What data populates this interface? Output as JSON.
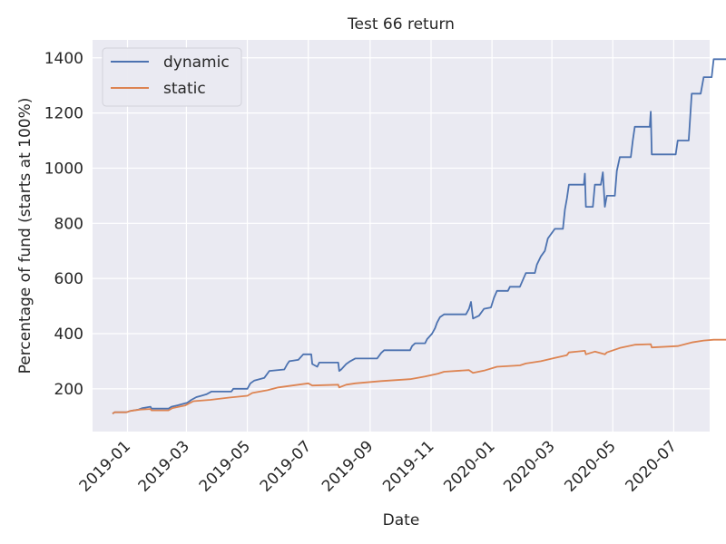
{
  "chart_data": {
    "type": "line",
    "title": "Test 66 return",
    "xlabel": "Date",
    "ylabel": "Percentage of fund (starts at 100%)",
    "xlim": [
      "2018-11-27",
      "2020-08-06"
    ],
    "ylim": [
      45,
      1465
    ],
    "x_ticks": [
      "2019-01",
      "2019-03",
      "2019-05",
      "2019-07",
      "2019-09",
      "2019-11",
      "2020-01",
      "2020-03",
      "2020-05",
      "2020-07"
    ],
    "y_ticks": [
      200,
      400,
      600,
      800,
      1000,
      1200,
      1400
    ],
    "grid": true,
    "legend": "top-left",
    "series": [
      {
        "name": "dynamic",
        "color": "#4c72b0",
        "points": [
          [
            "2018-12-17",
            110
          ],
          [
            "2018-12-19",
            115
          ],
          [
            "2018-12-31",
            115
          ],
          [
            "2019-01-04",
            120
          ],
          [
            "2019-01-12",
            125
          ],
          [
            "2019-01-16",
            130
          ],
          [
            "2019-01-24",
            135
          ],
          [
            "2019-01-25",
            128
          ],
          [
            "2019-02-11",
            128
          ],
          [
            "2019-02-14",
            135
          ],
          [
            "2019-02-20",
            140
          ],
          [
            "2019-02-25",
            145
          ],
          [
            "2019-03-02",
            150
          ],
          [
            "2019-03-06",
            160
          ],
          [
            "2019-03-11",
            170
          ],
          [
            "2019-03-16",
            175
          ],
          [
            "2019-03-21",
            180
          ],
          [
            "2019-03-26",
            190
          ],
          [
            "2019-04-15",
            190
          ],
          [
            "2019-04-17",
            200
          ],
          [
            "2019-05-01",
            200
          ],
          [
            "2019-05-04",
            220
          ],
          [
            "2019-05-08",
            230
          ],
          [
            "2019-05-13",
            235
          ],
          [
            "2019-05-18",
            240
          ],
          [
            "2019-05-23",
            265
          ],
          [
            "2019-06-07",
            270
          ],
          [
            "2019-06-10",
            290
          ],
          [
            "2019-06-12",
            300
          ],
          [
            "2019-06-21",
            305
          ],
          [
            "2019-06-26",
            325
          ],
          [
            "2019-07-04",
            325
          ],
          [
            "2019-07-05",
            290
          ],
          [
            "2019-07-10",
            280
          ],
          [
            "2019-07-12",
            295
          ],
          [
            "2019-07-31",
            295
          ],
          [
            "2019-08-01",
            265
          ],
          [
            "2019-08-03",
            270
          ],
          [
            "2019-08-08",
            290
          ],
          [
            "2019-08-12",
            300
          ],
          [
            "2019-08-17",
            310
          ],
          [
            "2019-09-08",
            310
          ],
          [
            "2019-09-12",
            330
          ],
          [
            "2019-09-15",
            340
          ],
          [
            "2019-10-11",
            340
          ],
          [
            "2019-10-13",
            355
          ],
          [
            "2019-10-16",
            365
          ],
          [
            "2019-10-26",
            365
          ],
          [
            "2019-10-28",
            380
          ],
          [
            "2019-11-02",
            400
          ],
          [
            "2019-11-05",
            420
          ],
          [
            "2019-11-07",
            440
          ],
          [
            "2019-11-10",
            460
          ],
          [
            "2019-11-14",
            470
          ],
          [
            "2019-12-06",
            470
          ],
          [
            "2019-12-09",
            490
          ],
          [
            "2019-12-11",
            515
          ],
          [
            "2019-12-13",
            455
          ],
          [
            "2019-12-19",
            465
          ],
          [
            "2019-12-24",
            490
          ],
          [
            "2019-12-31",
            495
          ],
          [
            "2020-01-03",
            530
          ],
          [
            "2020-01-06",
            555
          ],
          [
            "2020-01-17",
            555
          ],
          [
            "2020-01-19",
            570
          ],
          [
            "2020-01-29",
            570
          ],
          [
            "2020-02-01",
            595
          ],
          [
            "2020-02-04",
            620
          ],
          [
            "2020-02-13",
            620
          ],
          [
            "2020-02-15",
            650
          ],
          [
            "2020-02-19",
            680
          ],
          [
            "2020-02-23",
            700
          ],
          [
            "2020-02-26",
            745
          ],
          [
            "2020-03-04",
            780
          ],
          [
            "2020-03-12",
            780
          ],
          [
            "2020-03-14",
            850
          ],
          [
            "2020-03-16",
            890
          ],
          [
            "2020-03-18",
            940
          ],
          [
            "2020-04-02",
            940
          ],
          [
            "2020-04-03",
            980
          ],
          [
            "2020-04-04",
            860
          ],
          [
            "2020-04-11",
            860
          ],
          [
            "2020-04-13",
            940
          ],
          [
            "2020-04-19",
            940
          ],
          [
            "2020-04-21",
            985
          ],
          [
            "2020-04-23",
            860
          ],
          [
            "2020-04-25",
            900
          ],
          [
            "2020-05-03",
            900
          ],
          [
            "2020-05-05",
            990
          ],
          [
            "2020-05-08",
            1040
          ],
          [
            "2020-05-19",
            1040
          ],
          [
            "2020-05-21",
            1100
          ],
          [
            "2020-05-23",
            1150
          ],
          [
            "2020-06-07",
            1150
          ],
          [
            "2020-06-08",
            1205
          ],
          [
            "2020-06-09",
            1050
          ],
          [
            "2020-07-03",
            1050
          ],
          [
            "2020-07-05",
            1100
          ],
          [
            "2020-07-16",
            1100
          ],
          [
            "2020-07-19",
            1270
          ],
          [
            "2020-07-28",
            1270
          ],
          [
            "2020-07-31",
            1330
          ],
          [
            "2020-08-08",
            1330
          ],
          [
            "2020-08-10",
            1395
          ],
          [
            "2020-09-07",
            1395
          ]
        ]
      },
      {
        "name": "static",
        "color": "#dd8452",
        "points": [
          [
            "2018-12-17",
            110
          ],
          [
            "2018-12-19",
            115
          ],
          [
            "2018-12-31",
            115
          ],
          [
            "2019-01-04",
            120
          ],
          [
            "2019-01-14",
            125
          ],
          [
            "2019-01-24",
            127
          ],
          [
            "2019-01-25",
            122
          ],
          [
            "2019-02-11",
            122
          ],
          [
            "2019-02-15",
            130
          ],
          [
            "2019-02-28",
            140
          ],
          [
            "2019-03-08",
            155
          ],
          [
            "2019-03-25",
            160
          ],
          [
            "2019-04-12",
            168
          ],
          [
            "2019-05-01",
            175
          ],
          [
            "2019-05-06",
            185
          ],
          [
            "2019-05-21",
            195
          ],
          [
            "2019-06-01",
            205
          ],
          [
            "2019-06-21",
            215
          ],
          [
            "2019-07-01",
            220
          ],
          [
            "2019-07-05",
            212
          ],
          [
            "2019-07-31",
            215
          ],
          [
            "2019-08-01",
            205
          ],
          [
            "2019-08-08",
            215
          ],
          [
            "2019-08-17",
            220
          ],
          [
            "2019-09-12",
            228
          ],
          [
            "2019-10-11",
            235
          ],
          [
            "2019-10-26",
            245
          ],
          [
            "2019-11-08",
            255
          ],
          [
            "2019-11-14",
            262
          ],
          [
            "2019-12-09",
            268
          ],
          [
            "2019-12-13",
            258
          ],
          [
            "2019-12-24",
            266
          ],
          [
            "2020-01-06",
            280
          ],
          [
            "2020-01-29",
            285
          ],
          [
            "2020-02-04",
            292
          ],
          [
            "2020-02-19",
            300
          ],
          [
            "2020-03-04",
            312
          ],
          [
            "2020-03-16",
            322
          ],
          [
            "2020-03-18",
            332
          ],
          [
            "2020-04-03",
            338
          ],
          [
            "2020-04-04",
            325
          ],
          [
            "2020-04-13",
            335
          ],
          [
            "2020-04-23",
            325
          ],
          [
            "2020-04-25",
            332
          ],
          [
            "2020-05-08",
            348
          ],
          [
            "2020-05-23",
            360
          ],
          [
            "2020-06-08",
            362
          ],
          [
            "2020-06-09",
            350
          ],
          [
            "2020-07-05",
            355
          ],
          [
            "2020-07-19",
            368
          ],
          [
            "2020-07-31",
            375
          ],
          [
            "2020-08-10",
            378
          ],
          [
            "2020-09-07",
            378
          ]
        ]
      }
    ]
  }
}
